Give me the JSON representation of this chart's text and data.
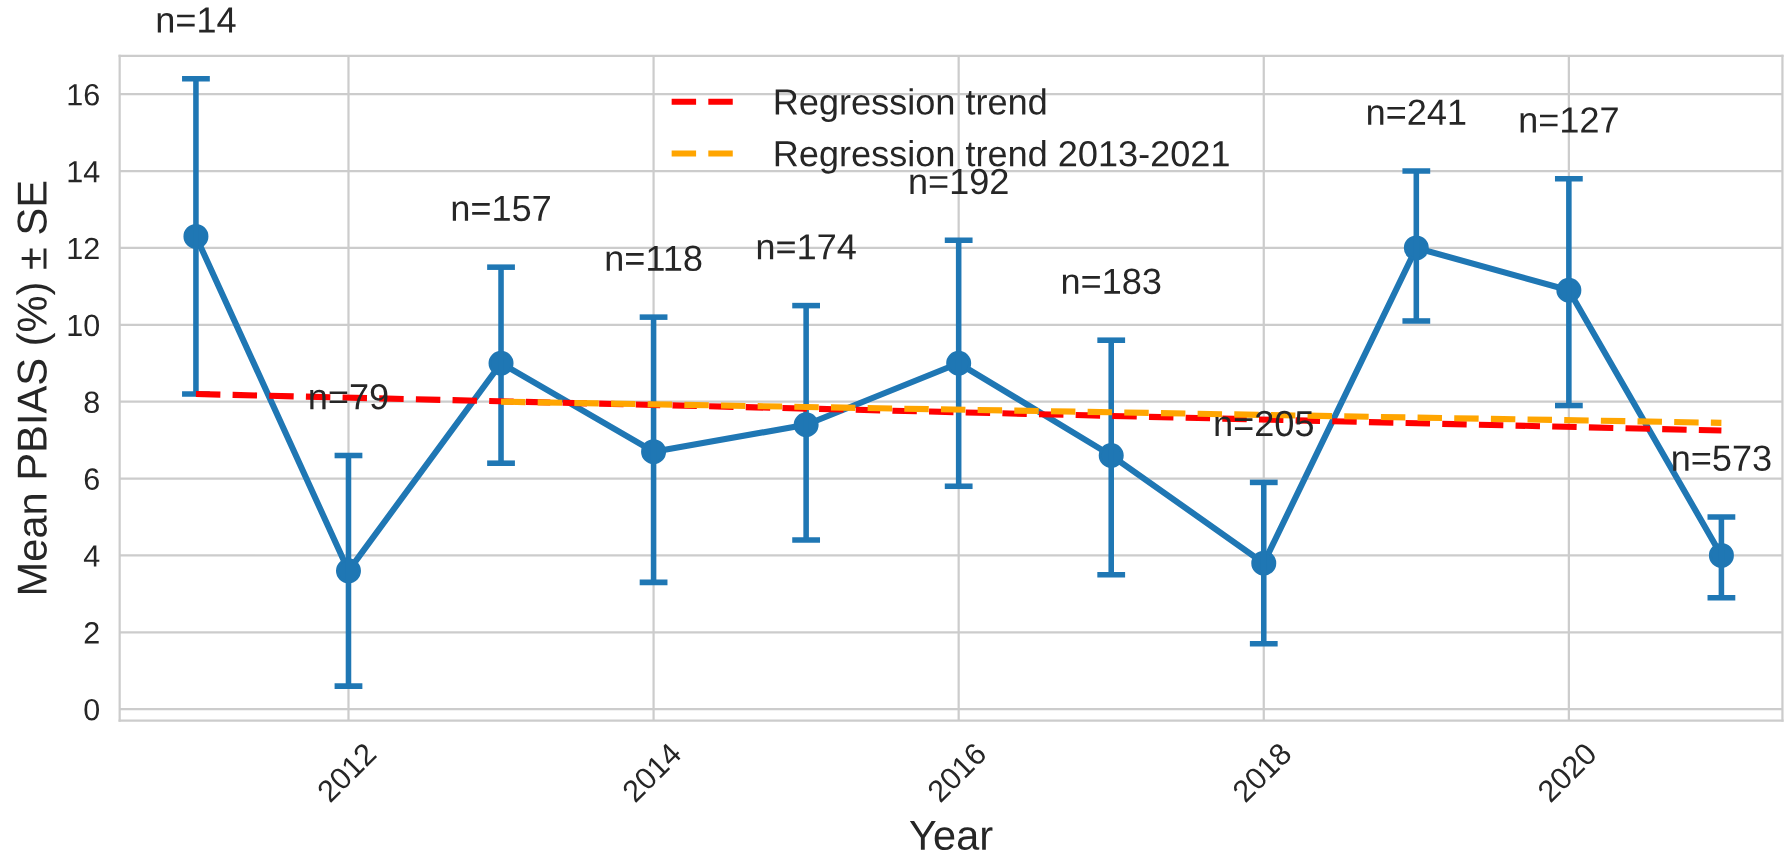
{
  "chart_data": {
    "type": "line",
    "xlabel": "Year",
    "ylabel": "Mean PBIAS (%) ± SE",
    "x": [
      2011,
      2012,
      2013,
      2014,
      2015,
      2016,
      2017,
      2018,
      2019,
      2020,
      2021
    ],
    "series": [
      {
        "color": "#1f77b4",
        "marker": "circle",
        "line_style": "solid",
        "values": [
          12.3,
          3.6,
          9.0,
          6.7,
          7.4,
          9.0,
          6.6,
          3.8,
          12.0,
          10.9,
          4.0
        ],
        "errors": [
          [
            8.2,
            16.4
          ],
          [
            0.6,
            6.6
          ],
          [
            6.4,
            11.5
          ],
          [
            3.3,
            10.2
          ],
          [
            4.4,
            10.5
          ],
          [
            5.8,
            12.2
          ],
          [
            3.5,
            9.6
          ],
          [
            1.7,
            5.9
          ],
          [
            10.1,
            14.0
          ],
          [
            7.9,
            13.8
          ],
          [
            2.9,
            5.0
          ]
        ]
      },
      {
        "type": "line",
        "name": "Regression trend",
        "color": "#ff0000",
        "line_style": "dashed",
        "marker": "none",
        "x": [
          2011,
          2021
        ],
        "values": [
          8.2,
          7.25
        ]
      },
      {
        "type": "line",
        "name": "Regression trend 2013-2021",
        "color": "#ffa500",
        "line_style": "dashed",
        "marker": "none",
        "x": [
          2013,
          2021
        ],
        "values": [
          8.0,
          7.45
        ]
      }
    ],
    "annotations": [
      {
        "text": "n=14",
        "x": 2011,
        "y": 16.4
      },
      {
        "text": "n=79",
        "x": 2012,
        "y": 6.6
      },
      {
        "text": "n=157",
        "x": 2013,
        "y": 11.5
      },
      {
        "text": "n=118",
        "x": 2014,
        "y": 10.2
      },
      {
        "text": "n=174",
        "x": 2015,
        "y": 10.5
      },
      {
        "text": "n=192",
        "x": 2016,
        "y": 12.2
      },
      {
        "text": "n=183",
        "x": 2017,
        "y": 9.6
      },
      {
        "text": "n=205",
        "x": 2018,
        "y": 5.9
      },
      {
        "text": "n=241",
        "x": 2019,
        "y": 14.0
      },
      {
        "text": "n=127",
        "x": 2020,
        "y": 13.8
      },
      {
        "text": "n=573",
        "x": 2021,
        "y": 5.0
      }
    ],
    "xlim": [
      2010.5,
      2021.4
    ],
    "xticks": [
      2012,
      2014,
      2016,
      2018,
      2020
    ],
    "ylim": [
      -0.3,
      17
    ],
    "yticks": [
      0,
      2,
      4,
      6,
      8,
      10,
      12,
      14,
      16
    ],
    "grid": true,
    "legend": "top center"
  }
}
